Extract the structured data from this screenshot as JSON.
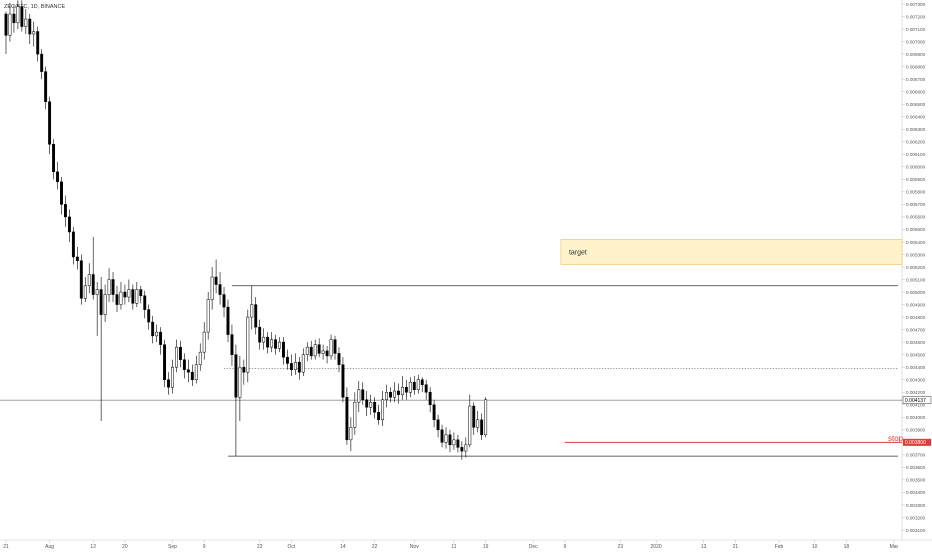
{
  "header": {
    "symbol_line": "ZEC/BTC, 1D, BINANCE"
  },
  "annotations": {
    "target_label": "target",
    "stop_label": "stop"
  },
  "price_tags": {
    "current": "0.004137",
    "stop": "0.003800"
  },
  "colors": {
    "up_fill": "#ffffff",
    "down_fill": "#000000",
    "candle_stroke": "#000000",
    "target_zone_fill": "#fff3cc",
    "target_zone_stroke": "#e8c15a",
    "stop_line": "#e53935",
    "stop_tag_bg": "#e53935",
    "current_tag_bg": "#ffffff",
    "level_line": "#333333",
    "dotted_line": "#555555",
    "axis_text": "#555555"
  },
  "chart_data": {
    "type": "candlestick",
    "x_axis_labels": [
      {
        "label": "21",
        "day": 0
      },
      {
        "label": "Aug",
        "day": 11
      },
      {
        "label": "12",
        "day": 22
      },
      {
        "label": "20",
        "day": 30
      },
      {
        "label": "Sep",
        "day": 42
      },
      {
        "label": "9",
        "day": 50
      },
      {
        "label": "23",
        "day": 64
      },
      {
        "label": "Oct",
        "day": 72
      },
      {
        "label": "14",
        "day": 85
      },
      {
        "label": "22",
        "day": 93
      },
      {
        "label": "Nov",
        "day": 103
      },
      {
        "label": "11",
        "day": 113
      },
      {
        "label": "19",
        "day": 121
      },
      {
        "label": "Dec",
        "day": 133
      },
      {
        "label": "9",
        "day": 141
      },
      {
        "label": "23",
        "day": 155
      },
      {
        "label": "2020",
        "day": 164
      },
      {
        "label": "13",
        "day": 176
      },
      {
        "label": "21",
        "day": 184
      },
      {
        "label": "Feb",
        "day": 195
      },
      {
        "label": "10",
        "day": 204
      },
      {
        "label": "18",
        "day": 212
      },
      {
        "label": "Mar",
        "day": 224
      }
    ],
    "y_axis": {
      "min": 0.0031,
      "max": 0.0073,
      "step": 0.0001,
      "decimals": 6
    },
    "levels": {
      "upper_resistance": 0.00505,
      "dotted_level": 0.00439,
      "current_price": 0.004137,
      "stop": 0.0038,
      "lower_support": 0.00369
    },
    "target_zone": {
      "low": 0.00522,
      "high": 0.00542,
      "start_day": 140,
      "end_day": 224
    },
    "candles": [
      [
        0.00722,
        0.00705,
        0.00724,
        0.0069
      ],
      [
        0.00705,
        0.00722,
        0.00731,
        0.007
      ],
      [
        0.00722,
        0.00715,
        0.00729,
        0.00707
      ],
      [
        0.00715,
        0.00728,
        0.00733,
        0.0071
      ],
      [
        0.00728,
        0.00712,
        0.00733,
        0.00708
      ],
      [
        0.00712,
        0.00718,
        0.00726,
        0.00706
      ],
      [
        0.00718,
        0.00706,
        0.00722,
        0.00698
      ],
      [
        0.00706,
        0.00708,
        0.00716,
        0.00696
      ],
      [
        0.00708,
        0.0069,
        0.00712,
        0.00684
      ],
      [
        0.0069,
        0.00676,
        0.00694,
        0.0067
      ],
      [
        0.00676,
        0.00652,
        0.0068,
        0.00646
      ],
      [
        0.00652,
        0.00618,
        0.00656,
        0.0061
      ],
      [
        0.00618,
        0.00596,
        0.00622,
        0.0059
      ],
      [
        0.00596,
        0.00588,
        0.00604,
        0.00582
      ],
      [
        0.00588,
        0.0057,
        0.00592,
        0.00562
      ],
      [
        0.0057,
        0.0056,
        0.00577,
        0.00552
      ],
      [
        0.0056,
        0.00548,
        0.00566,
        0.0054
      ],
      [
        0.00548,
        0.00528,
        0.00552,
        0.00522
      ],
      [
        0.00528,
        0.00525,
        0.00536,
        0.00518
      ],
      [
        0.00525,
        0.00495,
        0.0053,
        0.0049
      ],
      [
        0.00495,
        0.00505,
        0.00512,
        0.00492
      ],
      [
        0.00505,
        0.00514,
        0.00523,
        0.00499
      ],
      [
        0.00514,
        0.00498,
        0.00544,
        0.00494
      ],
      [
        0.00498,
        0.00502,
        0.00508,
        0.00465
      ],
      [
        0.00502,
        0.00482,
        0.00512,
        0.00397
      ],
      [
        0.00482,
        0.00498,
        0.00506,
        0.00476
      ],
      [
        0.00498,
        0.0051,
        0.00519,
        0.00492
      ],
      [
        0.0051,
        0.00498,
        0.00516,
        0.00492
      ],
      [
        0.00498,
        0.0049,
        0.00505,
        0.00484
      ],
      [
        0.0049,
        0.005,
        0.00508,
        0.00486
      ],
      [
        0.005,
        0.00496,
        0.00506,
        0.0049
      ],
      [
        0.00496,
        0.00502,
        0.0051,
        0.00492
      ],
      [
        0.00502,
        0.00491,
        0.00506,
        0.00486
      ],
      [
        0.00491,
        0.00502,
        0.00508,
        0.00488
      ],
      [
        0.00502,
        0.00497,
        0.00505,
        0.00491
      ],
      [
        0.00497,
        0.00486,
        0.00501,
        0.00479
      ],
      [
        0.00486,
        0.00476,
        0.0049,
        0.0047
      ],
      [
        0.00476,
        0.00465,
        0.00481,
        0.00459
      ],
      [
        0.00465,
        0.00468,
        0.00474,
        0.0046
      ],
      [
        0.00468,
        0.00458,
        0.00472,
        0.0045
      ],
      [
        0.00458,
        0.0043,
        0.00462,
        0.00424
      ],
      [
        0.0043,
        0.00424,
        0.00436,
        0.00418
      ],
      [
        0.00424,
        0.0044,
        0.00446,
        0.00419
      ],
      [
        0.0044,
        0.00456,
        0.00462,
        0.00436
      ],
      [
        0.00456,
        0.00446,
        0.00461,
        0.0044
      ],
      [
        0.00446,
        0.00438,
        0.00451,
        0.00431
      ],
      [
        0.00438,
        0.00436,
        0.00446,
        0.00428
      ],
      [
        0.00436,
        0.0043,
        0.00442,
        0.00425
      ],
      [
        0.0043,
        0.00442,
        0.00449,
        0.00427
      ],
      [
        0.00442,
        0.00452,
        0.00459,
        0.00437
      ],
      [
        0.00452,
        0.00468,
        0.00476,
        0.00446
      ],
      [
        0.00468,
        0.00494,
        0.005,
        0.00462
      ],
      [
        0.00494,
        0.00512,
        0.0052,
        0.00486
      ],
      [
        0.00512,
        0.00506,
        0.00526,
        0.00499
      ],
      [
        0.00506,
        0.00498,
        0.00516,
        0.0049
      ],
      [
        0.00498,
        0.00488,
        0.00504,
        0.0048
      ],
      [
        0.00488,
        0.00466,
        0.00494,
        0.0046
      ],
      [
        0.00466,
        0.0045,
        0.00474,
        0.00441
      ],
      [
        0.0045,
        0.00416,
        0.00458,
        0.00369
      ],
      [
        0.00416,
        0.0044,
        0.00449,
        0.00397
      ],
      [
        0.0044,
        0.00436,
        0.00446,
        0.00426
      ],
      [
        0.00436,
        0.0048,
        0.00486,
        0.00428
      ],
      [
        0.0048,
        0.0049,
        0.00505,
        0.0047
      ],
      [
        0.0049,
        0.00472,
        0.00496,
        0.00466
      ],
      [
        0.00472,
        0.0046,
        0.00478,
        0.00454
      ],
      [
        0.0046,
        0.00464,
        0.00471,
        0.00454
      ],
      [
        0.00464,
        0.00456,
        0.00468,
        0.00451
      ],
      [
        0.00456,
        0.00462,
        0.00468,
        0.00452
      ],
      [
        0.00462,
        0.00455,
        0.00466,
        0.0045
      ],
      [
        0.00455,
        0.0046,
        0.00464,
        0.00452
      ],
      [
        0.0046,
        0.00448,
        0.00464,
        0.00442
      ],
      [
        0.00448,
        0.00443,
        0.00454,
        0.00438
      ],
      [
        0.00443,
        0.00438,
        0.0045,
        0.00433
      ],
      [
        0.00438,
        0.00444,
        0.00451,
        0.00434
      ],
      [
        0.00444,
        0.00436,
        0.00448,
        0.0043
      ],
      [
        0.00436,
        0.0045,
        0.00455,
        0.00433
      ],
      [
        0.0045,
        0.00456,
        0.0046,
        0.00445
      ],
      [
        0.00456,
        0.00449,
        0.00461,
        0.00446
      ],
      [
        0.00449,
        0.00458,
        0.00462,
        0.00446
      ],
      [
        0.00458,
        0.00451,
        0.00463,
        0.00448
      ],
      [
        0.00451,
        0.00453,
        0.00458,
        0.00446
      ],
      [
        0.00453,
        0.00449,
        0.00457,
        0.00443
      ],
      [
        0.00449,
        0.00462,
        0.00466,
        0.00446
      ],
      [
        0.00462,
        0.00451,
        0.00465,
        0.00446
      ],
      [
        0.00451,
        0.00442,
        0.00456,
        0.00436
      ],
      [
        0.00442,
        0.00416,
        0.00448,
        0.00412
      ],
      [
        0.00416,
        0.00382,
        0.00424,
        0.00378
      ],
      [
        0.00382,
        0.00392,
        0.004,
        0.00373
      ],
      [
        0.00392,
        0.00412,
        0.0042,
        0.00386
      ],
      [
        0.00412,
        0.00422,
        0.00429,
        0.00404
      ],
      [
        0.00422,
        0.00414,
        0.00428,
        0.0041
      ],
      [
        0.00414,
        0.00408,
        0.00421,
        0.00401
      ],
      [
        0.00408,
        0.00412,
        0.00418,
        0.00402
      ],
      [
        0.00412,
        0.00404,
        0.00416,
        0.00399
      ],
      [
        0.00404,
        0.00398,
        0.0041,
        0.00394
      ],
      [
        0.00398,
        0.00414,
        0.00421,
        0.00393
      ],
      [
        0.00414,
        0.0042,
        0.00426,
        0.00408
      ],
      [
        0.0042,
        0.00416,
        0.00424,
        0.00412
      ],
      [
        0.00416,
        0.00421,
        0.00428,
        0.00412
      ],
      [
        0.00421,
        0.00418,
        0.00427,
        0.00411
      ],
      [
        0.00418,
        0.00424,
        0.00433,
        0.00414
      ],
      [
        0.00424,
        0.0042,
        0.0043,
        0.00414
      ],
      [
        0.0042,
        0.00428,
        0.00432,
        0.00416
      ],
      [
        0.00428,
        0.00422,
        0.00433,
        0.00418
      ],
      [
        0.00422,
        0.0043,
        0.00434,
        0.00419
      ],
      [
        0.0043,
        0.00426,
        0.00432,
        0.0042
      ],
      [
        0.00426,
        0.0042,
        0.0043,
        0.00414
      ],
      [
        0.0042,
        0.0041,
        0.00424,
        0.00404
      ],
      [
        0.0041,
        0.00398,
        0.00414,
        0.00392
      ],
      [
        0.00398,
        0.0039,
        0.00402,
        0.00384
      ],
      [
        0.0039,
        0.0038,
        0.00394,
        0.00376
      ],
      [
        0.0038,
        0.00386,
        0.00392,
        0.00375
      ],
      [
        0.00386,
        0.00378,
        0.0039,
        0.00372
      ],
      [
        0.00378,
        0.00382,
        0.00388,
        0.00374
      ],
      [
        0.00382,
        0.00376,
        0.00386,
        0.00372
      ],
      [
        0.00376,
        0.00373,
        0.00381,
        0.00366
      ],
      [
        0.00373,
        0.00378,
        0.00384,
        0.00368
      ],
      [
        0.00378,
        0.00409,
        0.00418,
        0.00376
      ],
      [
        0.00409,
        0.00392,
        0.00412,
        0.00386
      ],
      [
        0.00392,
        0.00398,
        0.00405,
        0.00388
      ],
      [
        0.00398,
        0.00386,
        0.00403,
        0.00382
      ],
      [
        0.00386,
        0.00414,
        0.00416,
        0.00384
      ]
    ]
  }
}
